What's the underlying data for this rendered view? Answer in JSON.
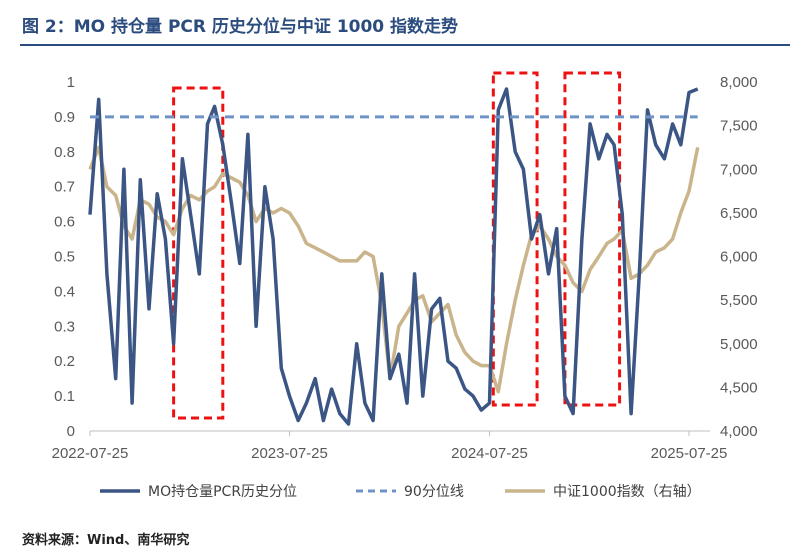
{
  "header": {
    "figure_title": "图 2：MO 持仓量 PCR 历史分位与中证 1000 指数走势"
  },
  "footer": {
    "source": "资料来源：Wind、南华研究"
  },
  "colors": {
    "title": "#2b4c7e",
    "pcr_series": "#3b5584",
    "threshold_series": "#6f93c7",
    "index_series": "#c9b48c",
    "highlight_box": "#ee1111"
  },
  "chart_data": {
    "type": "line",
    "x_tick_labels": [
      "2022-07-25",
      "2023-07-25",
      "2024-07-25",
      "2025-07-25"
    ],
    "y_left": {
      "range": [
        0,
        1
      ],
      "tick_labels": [
        "0",
        "0.1",
        "0.2",
        "0.3",
        "0.4",
        "0.5",
        "0.6",
        "0.7",
        "0.8",
        "0.9",
        "1"
      ]
    },
    "y_right": {
      "range": [
        4000,
        8000
      ],
      "tick_labels": [
        "4,000",
        "4,500",
        "5,000",
        "5,500",
        "6,000",
        "6,500",
        "7,000",
        "7,500",
        "8,000"
      ]
    },
    "grid": false,
    "legend_position": "bottom",
    "series": [
      {
        "name": "MO持仓量PCR历史分位",
        "axis": "left",
        "style": "solid",
        "x": [
          "2022-07-25",
          "2022-08-10",
          "2022-08-25",
          "2022-09-10",
          "2022-09-25",
          "2022-10-10",
          "2022-10-25",
          "2022-11-10",
          "2022-11-25",
          "2022-12-10",
          "2022-12-25",
          "2023-01-10",
          "2023-01-25",
          "2023-02-10",
          "2023-02-25",
          "2023-03-10",
          "2023-03-25",
          "2023-04-10",
          "2023-04-25",
          "2023-05-10",
          "2023-05-25",
          "2023-06-10",
          "2023-06-25",
          "2023-07-10",
          "2023-07-25",
          "2023-08-10",
          "2023-08-25",
          "2023-09-10",
          "2023-09-25",
          "2023-10-10",
          "2023-10-25",
          "2023-11-10",
          "2023-11-25",
          "2023-12-10",
          "2023-12-25",
          "2024-01-10",
          "2024-01-25",
          "2024-02-10",
          "2024-02-25",
          "2024-03-10",
          "2024-03-25",
          "2024-04-10",
          "2024-04-25",
          "2024-05-10",
          "2024-05-25",
          "2024-06-10",
          "2024-06-25",
          "2024-07-10",
          "2024-07-25",
          "2024-08-10",
          "2024-08-25",
          "2024-09-10",
          "2024-09-25",
          "2024-10-10",
          "2024-10-25",
          "2024-11-10",
          "2024-11-25",
          "2024-12-10",
          "2024-12-25",
          "2025-01-10",
          "2025-01-25",
          "2025-02-10",
          "2025-02-25",
          "2025-03-10",
          "2025-03-25",
          "2025-04-10",
          "2025-04-25",
          "2025-05-10",
          "2025-05-25",
          "2025-06-10",
          "2025-06-25",
          "2025-07-10",
          "2025-07-25",
          "2025-08-10"
        ],
        "values": [
          0.62,
          0.95,
          0.45,
          0.15,
          0.75,
          0.08,
          0.72,
          0.35,
          0.68,
          0.55,
          0.25,
          0.78,
          0.62,
          0.45,
          0.88,
          0.93,
          0.82,
          0.65,
          0.48,
          0.85,
          0.3,
          0.7,
          0.55,
          0.18,
          0.1,
          0.03,
          0.08,
          0.15,
          0.03,
          0.12,
          0.05,
          0.02,
          0.25,
          0.08,
          0.03,
          0.45,
          0.15,
          0.22,
          0.08,
          0.45,
          0.1,
          0.35,
          0.38,
          0.2,
          0.18,
          0.12,
          0.1,
          0.06,
          0.08,
          0.92,
          0.98,
          0.8,
          0.75,
          0.55,
          0.62,
          0.45,
          0.58,
          0.1,
          0.05,
          0.55,
          0.88,
          0.78,
          0.85,
          0.82,
          0.62,
          0.05,
          0.45,
          0.92,
          0.82,
          0.78,
          0.88,
          0.82,
          0.97,
          0.98
        ]
      },
      {
        "name": "90分位线",
        "axis": "left",
        "style": "dashed",
        "x": [
          "2022-07-25",
          "2025-08-10"
        ],
        "values": [
          0.9,
          0.9
        ]
      },
      {
        "name": "中证1000指数（右轴）",
        "axis": "right",
        "style": "solid",
        "x": [
          "2022-07-25",
          "2022-08-10",
          "2022-08-25",
          "2022-09-10",
          "2022-09-25",
          "2022-10-10",
          "2022-10-25",
          "2022-11-10",
          "2022-11-25",
          "2022-12-10",
          "2022-12-25",
          "2023-01-10",
          "2023-01-25",
          "2023-02-10",
          "2023-02-25",
          "2023-03-10",
          "2023-03-25",
          "2023-04-10",
          "2023-04-25",
          "2023-05-10",
          "2023-05-25",
          "2023-06-10",
          "2023-06-25",
          "2023-07-10",
          "2023-07-25",
          "2023-08-10",
          "2023-08-25",
          "2023-09-10",
          "2023-09-25",
          "2023-10-10",
          "2023-10-25",
          "2023-11-10",
          "2023-11-25",
          "2023-12-10",
          "2023-12-25",
          "2024-01-10",
          "2024-01-25",
          "2024-02-10",
          "2024-02-25",
          "2024-03-10",
          "2024-03-25",
          "2024-04-10",
          "2024-04-25",
          "2024-05-10",
          "2024-05-25",
          "2024-06-10",
          "2024-06-25",
          "2024-07-10",
          "2024-07-25",
          "2024-08-10",
          "2024-08-25",
          "2024-09-10",
          "2024-09-25",
          "2024-10-10",
          "2024-10-25",
          "2024-11-10",
          "2024-11-25",
          "2024-12-10",
          "2024-12-25",
          "2025-01-10",
          "2025-01-25",
          "2025-02-10",
          "2025-02-25",
          "2025-03-10",
          "2025-03-25",
          "2025-04-10",
          "2025-04-25",
          "2025-05-10",
          "2025-05-25",
          "2025-06-10",
          "2025-06-25",
          "2025-07-10",
          "2025-07-25",
          "2025-08-10"
        ],
        "values": [
          7000,
          7250,
          6800,
          6700,
          6350,
          6200,
          6650,
          6600,
          6450,
          6400,
          6250,
          6550,
          6700,
          6650,
          6750,
          6800,
          6950,
          6900,
          6850,
          6700,
          6400,
          6550,
          6500,
          6550,
          6500,
          6350,
          6150,
          6100,
          6050,
          6000,
          5950,
          5950,
          5950,
          6050,
          6000,
          5450,
          4600,
          5200,
          5350,
          5500,
          5550,
          5250,
          5350,
          5450,
          5100,
          4900,
          4800,
          4750,
          4750,
          4450,
          5000,
          5500,
          5900,
          6250,
          6350,
          6200,
          6000,
          5900,
          5700,
          5600,
          5850,
          6000,
          6150,
          6200,
          6300,
          5750,
          5800,
          5900,
          6050,
          6100,
          6200,
          6500,
          6750,
          7250
        ]
      }
    ],
    "highlight_ranges": [
      {
        "start": "2022-12-25",
        "end": "2023-03-25"
      },
      {
        "start": "2024-08-01",
        "end": "2024-10-20"
      },
      {
        "start": "2024-12-10",
        "end": "2025-03-20"
      }
    ]
  }
}
